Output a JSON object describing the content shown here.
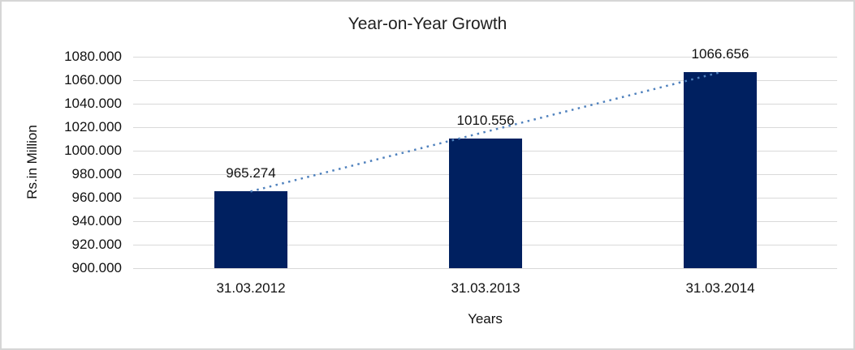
{
  "chart_data": {
    "type": "bar",
    "title": "Year-on-Year Growth",
    "xlabel": "Years",
    "ylabel": "Rs.in Million",
    "categories": [
      "31.03.2012",
      "31.03.2013",
      "31.03.2014"
    ],
    "values": [
      965.274,
      1010.556,
      1066.656
    ],
    "data_labels": [
      "965.274",
      "1010.556",
      "1066.656"
    ],
    "ylim": [
      900,
      1080
    ],
    "ytick_step": 20,
    "ytick_labels": [
      "1080.000",
      "1060.000",
      "1040.000",
      "1020.000",
      "1000.000",
      "980.000",
      "960.000",
      "940.000",
      "920.000",
      "900.000"
    ],
    "grid": true,
    "legend": "none",
    "trendline": {
      "type": "linear",
      "style": "dotted",
      "from_category_index": 0,
      "from_value": 965.274,
      "to_category_index": 2,
      "to_value": 1066.656
    },
    "colors": {
      "bar": "#002060",
      "trendline": "#4F81BD",
      "gridline": "#D9D9D9",
      "text": "#111111",
      "border": "#D6D6D6",
      "background": "#FFFFFF"
    }
  }
}
